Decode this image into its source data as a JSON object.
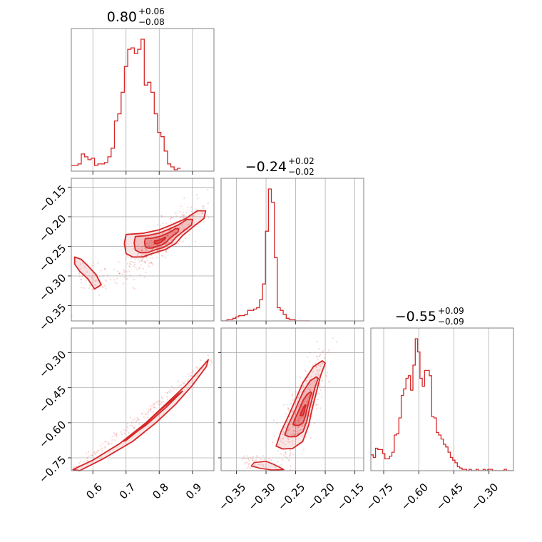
{
  "chart_data": {
    "type": "corner",
    "color": "#d62728",
    "parameters": [
      {
        "id": "p1",
        "ticks": [
          0.6,
          0.7,
          0.8,
          0.9
        ],
        "tick_labels": [
          "0.6",
          "0.7",
          "0.8",
          "0.9"
        ],
        "range": [
          0.535,
          0.965
        ]
      },
      {
        "id": "p2",
        "ticks": [
          -0.35,
          -0.3,
          -0.25,
          -0.2,
          -0.15
        ],
        "tick_labels": [
          "−0.35",
          "−0.30",
          "−0.25",
          "−0.20",
          "−0.15"
        ],
        "range": [
          -0.376,
          -0.135
        ]
      },
      {
        "id": "p3",
        "ticks": [
          -0.75,
          -0.6,
          -0.45,
          -0.3
        ],
        "tick_labels": [
          "−0.75",
          "−0.60",
          "−0.45",
          "−0.30"
        ],
        "range": [
          -0.805,
          -0.195
        ]
      }
    ],
    "titles": [
      {
        "value": "0.80",
        "plus": "+0.06",
        "minus": "−0.08"
      },
      {
        "value": "−0.24",
        "plus": "+0.02",
        "minus": "−0.02"
      },
      {
        "value": "−0.55",
        "plus": "+0.09",
        "minus": "−0.09"
      }
    ],
    "histograms": [
      {
        "param": 0,
        "bin_start": 0.535,
        "bin_width": 0.01,
        "counts": [
          4,
          4,
          5,
          12,
          10,
          8,
          9,
          4,
          5,
          5,
          6,
          10,
          16,
          35,
          40,
          55,
          73,
          85,
          86,
          82,
          85,
          92,
          60,
          62,
          55,
          40,
          27,
          24,
          14,
          5,
          3,
          1,
          2
        ]
      },
      {
        "param": 1,
        "bin_start": -0.376,
        "bin_width": 0.005,
        "counts": [
          0,
          0,
          1,
          1,
          2,
          3,
          4,
          4,
          5,
          8,
          8,
          9,
          10,
          16,
          28,
          68,
          100,
          90,
          48,
          10,
          8,
          5,
          2,
          1,
          1,
          0,
          0,
          0,
          0,
          0
        ]
      },
      {
        "param": 2,
        "bin_start": -0.805,
        "bin_width": 0.01,
        "counts": [
          12,
          10,
          17,
          16,
          16,
          13,
          9,
          9,
          11,
          14,
          27,
          28,
          40,
          57,
          62,
          70,
          72,
          61,
          80,
          100,
          90,
          70,
          64,
          76,
          76,
          72,
          41,
          40,
          29,
          27,
          24,
          20,
          18,
          14,
          10,
          8,
          6,
          3,
          2,
          1,
          1,
          0,
          1,
          0,
          0,
          1,
          0,
          0,
          1,
          0,
          1,
          1,
          0,
          0,
          0,
          0,
          0,
          1,
          0,
          0,
          0
        ]
      }
    ],
    "pairs": [
      {
        "x": 0,
        "y": 1,
        "relation": "main cluster slope upward, secondary mode near x 0.55-0.65 at y -0.28 to -0.32"
      },
      {
        "x": 0,
        "y": 2,
        "relation": "tight monotonic curve from (0.54,-0.80) to (0.95,-0.33)"
      },
      {
        "x": 1,
        "y": 2,
        "relation": "elongated positive correlation, cluster at x -0.28 to -0.21"
      }
    ]
  }
}
